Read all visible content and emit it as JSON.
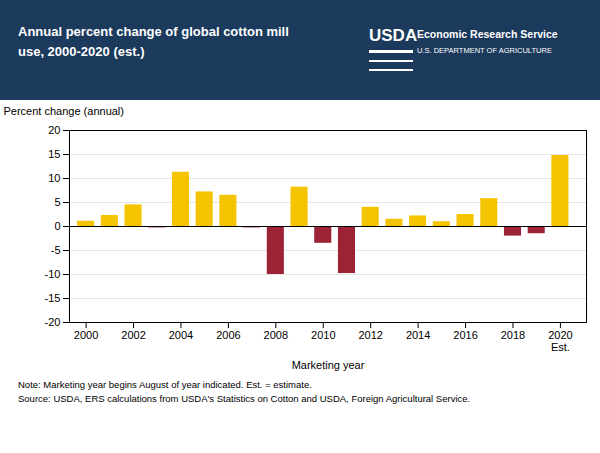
{
  "chart_data": {
    "type": "bar",
    "title": "Annual percent change of global cotton mill\nuse, 2000-2020 (est.)",
    "x": [
      2000,
      2001,
      2002,
      2003,
      2004,
      2005,
      2006,
      2007,
      2008,
      2009,
      2010,
      2011,
      2012,
      2013,
      2014,
      2015,
      2016,
      2017,
      2018,
      2019,
      2020
    ],
    "values": [
      1.1,
      2.3,
      4.5,
      -0.3,
      11.3,
      7.2,
      6.5,
      -0.3,
      -10.0,
      8.2,
      -3.5,
      -9.8,
      4.0,
      1.5,
      2.2,
      1.0,
      2.5,
      5.8,
      -2.0,
      -1.5,
      14.8
    ],
    "colors": [
      "#F5C400",
      "#F5C400",
      "#F5C400",
      "#9B2335",
      "#F5C400",
      "#F5C400",
      "#F5C400",
      "#9B2335",
      "#9B2335",
      "#F5C400",
      "#9B2335",
      "#9B2335",
      "#F5C400",
      "#F5C400",
      "#F5C400",
      "#F5C400",
      "#F5C400",
      "#F5C400",
      "#9B2335",
      "#9B2335",
      "#F5C400"
    ],
    "ylabel": "Percent change (annual)",
    "xlabel": "Marketing year",
    "ylim": [
      -20,
      20
    ],
    "yticks": [
      -20,
      -15,
      -10,
      -5,
      0,
      5,
      10,
      15,
      20
    ],
    "xlim": [
      1999.3,
      2021.1
    ],
    "xticks": [
      2000,
      2002,
      2004,
      2006,
      2008,
      2010,
      2012,
      2014,
      2016,
      2018,
      2020
    ],
    "grid": true,
    "annotations": [
      {
        "text": "USDA"
      },
      {
        "text": "Economic Research Service"
      },
      {
        "text": "U.S. DEPARTMENT OF AGRICULTURE"
      },
      {
        "text": "Est.",
        "x": 2020
      },
      {
        "text": "Note: Marketing year begins August of year indicated. Est. = estimate."
      },
      {
        "text": "Source: USDA, ERS calculations from USDA's Statistics on Cotton and USDA, Foreign Agricultural Service."
      }
    ]
  }
}
